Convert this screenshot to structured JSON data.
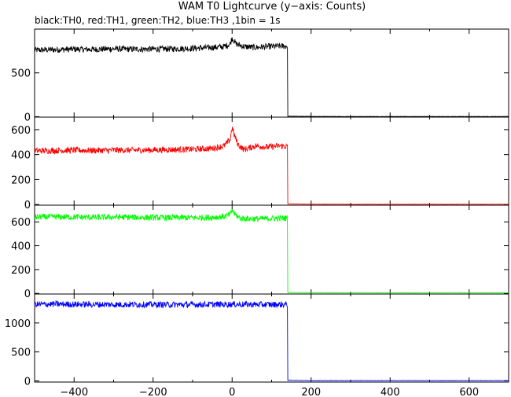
{
  "chart_data": {
    "type": "line",
    "title": "WAM T0 Lightcurve (y−axis: Counts)",
    "subtitle": "black:TH0, red:TH1, green:TH2, blue:TH3 ,1bin = 1s",
    "xlabel": "",
    "ylabel": "",
    "xlim": [
      -500,
      700
    ],
    "x_ticks": [
      -400,
      -200,
      0,
      200,
      400,
      600
    ],
    "x_tick_labels": [
      "−400",
      "−200",
      "0",
      "200",
      "400",
      "600"
    ],
    "grid": false,
    "panels": [
      {
        "name": "TH0",
        "color": "#000000",
        "ylim": [
          -5,
          1000
        ],
        "y_ticks": [
          0,
          500
        ],
        "y_tick_labels": [
          "0",
          "500"
        ],
        "x": [
          -500,
          -450,
          -400,
          -350,
          -300,
          -250,
          -200,
          -150,
          -100,
          -50,
          -20,
          -5,
          0,
          10,
          30,
          60,
          90,
          120,
          140,
          141,
          200,
          300,
          400,
          500,
          600,
          700
        ],
        "y": [
          760,
          765,
          770,
          768,
          775,
          770,
          772,
          775,
          780,
          790,
          800,
          830,
          900,
          830,
          800,
          790,
          800,
          805,
          805,
          5,
          3,
          2,
          2,
          2,
          2,
          2
        ]
      },
      {
        "name": "TH1",
        "color": "#ff0000",
        "ylim": [
          -5,
          700
        ],
        "y_ticks": [
          0,
          200,
          400,
          600
        ],
        "y_tick_labels": [
          "0",
          "200",
          "400",
          "600"
        ],
        "x": [
          -500,
          -450,
          -400,
          -350,
          -300,
          -250,
          -200,
          -150,
          -100,
          -50,
          -20,
          -5,
          0,
          5,
          15,
          30,
          60,
          90,
          120,
          140,
          141,
          200,
          300,
          400,
          500,
          600,
          700
        ],
        "y": [
          430,
          432,
          435,
          433,
          436,
          435,
          437,
          440,
          442,
          450,
          470,
          520,
          620,
          560,
          480,
          440,
          470,
          460,
          470,
          465,
          5,
          3,
          2,
          2,
          2,
          2,
          2
        ]
      },
      {
        "name": "TH2",
        "color": "#00ff00",
        "ylim": [
          -5,
          740
        ],
        "y_ticks": [
          0,
          200,
          400,
          600
        ],
        "y_tick_labels": [
          "0",
          "200",
          "400",
          "600"
        ],
        "x": [
          -500,
          -450,
          -400,
          -350,
          -300,
          -250,
          -200,
          -150,
          -100,
          -50,
          -20,
          -5,
          0,
          5,
          20,
          60,
          90,
          120,
          140,
          141,
          200,
          300,
          400,
          500,
          600,
          700
        ],
        "y": [
          640,
          642,
          640,
          638,
          640,
          638,
          636,
          635,
          635,
          638,
          645,
          660,
          700,
          670,
          630,
          625,
          628,
          630,
          632,
          8,
          6,
          5,
          5,
          5,
          5,
          5
        ]
      },
      {
        "name": "TH3",
        "color": "#0000ff",
        "ylim": [
          -20,
          1500
        ],
        "y_ticks": [
          0,
          500,
          1000
        ],
        "y_tick_labels": [
          "0",
          "500",
          "1000"
        ],
        "x": [
          -500,
          -450,
          -400,
          -350,
          -300,
          -250,
          -200,
          -150,
          -100,
          -50,
          0,
          50,
          100,
          140,
          141,
          200,
          300,
          400,
          500,
          600,
          700
        ],
        "y": [
          1320,
          1325,
          1322,
          1320,
          1318,
          1320,
          1318,
          1315,
          1318,
          1320,
          1322,
          1320,
          1318,
          1320,
          10,
          5,
          5,
          5,
          5,
          5,
          5
        ]
      }
    ]
  }
}
